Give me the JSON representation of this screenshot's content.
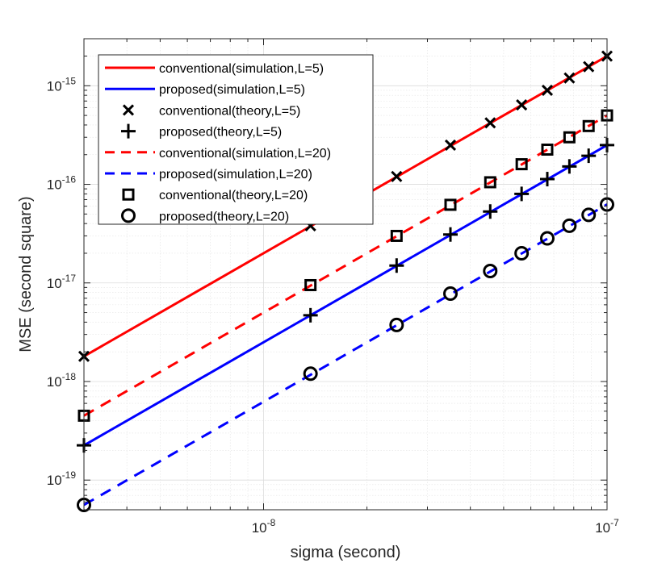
{
  "chart_data": {
    "type": "line",
    "xlabel": "sigma (second)",
    "ylabel": "MSE (second square)",
    "x_scale": "log",
    "y_scale": "log",
    "xlim": [
      3e-09,
      1e-07
    ],
    "ylim": [
      5e-20,
      3e-15
    ],
    "grid": true,
    "legend_position": "top-left",
    "x_ticks": [
      {
        "value": 1e-08,
        "base": "10",
        "exp": "-8"
      },
      {
        "value": 1e-07,
        "base": "10",
        "exp": "-7"
      }
    ],
    "y_ticks": [
      {
        "value": 1e-19,
        "base": "10",
        "exp": "-19"
      },
      {
        "value": 1e-18,
        "base": "10",
        "exp": "-18"
      },
      {
        "value": 1e-17,
        "base": "10",
        "exp": "-17"
      },
      {
        "value": 1e-16,
        "base": "10",
        "exp": "-16"
      },
      {
        "value": 1e-15,
        "base": "10",
        "exp": "-15"
      }
    ],
    "series": [
      {
        "name": "conventional(simulation,L=5)",
        "style": "solid",
        "color": "#ff0000",
        "marker": "none",
        "x": [
          3e-09,
          1e-07
        ],
        "y": [
          1.8e-18,
          2e-15
        ]
      },
      {
        "name": "proposed(simulation,L=5)",
        "style": "solid",
        "color": "#0000ff",
        "marker": "none",
        "x": [
          3e-09,
          1e-07
        ],
        "y": [
          2.25e-19,
          2.5e-16
        ]
      },
      {
        "name": "conventional(theory,L=5)",
        "style": "none",
        "color": "#000000",
        "marker": "x",
        "x": [
          3e-09,
          1.37e-08,
          2.44e-08,
          3.5e-08,
          4.57e-08,
          5.64e-08,
          6.7e-08,
          7.77e-08,
          8.84e-08,
          1e-07
        ],
        "y": [
          1.8e-18,
          3.8e-17,
          1.2e-16,
          2.5e-16,
          4.2e-16,
          6.4e-16,
          9e-16,
          1.2e-15,
          1.56e-15,
          2e-15
        ]
      },
      {
        "name": "proposed(theory,L=5)",
        "style": "none",
        "color": "#000000",
        "marker": "+",
        "x": [
          3e-09,
          1.37e-08,
          2.44e-08,
          3.5e-08,
          4.57e-08,
          5.64e-08,
          6.7e-08,
          7.77e-08,
          8.84e-08,
          1e-07
        ],
        "y": [
          2.25e-19,
          4.7e-18,
          1.5e-17,
          3.1e-17,
          5.3e-17,
          8e-17,
          1.13e-16,
          1.52e-16,
          1.95e-16,
          2.5e-16
        ]
      },
      {
        "name": "conventional(simulation,L=20)",
        "style": "dashed",
        "color": "#ff0000",
        "marker": "none",
        "x": [
          3e-09,
          1e-07
        ],
        "y": [
          4.5e-19,
          5e-16
        ]
      },
      {
        "name": "proposed(simulation,L=20)",
        "style": "dashed",
        "color": "#0000ff",
        "marker": "none",
        "x": [
          3e-09,
          1e-07
        ],
        "y": [
          5.6e-20,
          6.25e-17
        ]
      },
      {
        "name": "conventional(theory,L=20)",
        "style": "none",
        "color": "#000000",
        "marker": "square",
        "x": [
          3e-09,
          1.37e-08,
          2.44e-08,
          3.5e-08,
          4.57e-08,
          5.64e-08,
          6.7e-08,
          7.77e-08,
          8.84e-08,
          1e-07
        ],
        "y": [
          4.5e-19,
          9.5e-18,
          3e-17,
          6.2e-17,
          1.05e-16,
          1.6e-16,
          2.25e-16,
          3e-16,
          3.9e-16,
          5e-16
        ]
      },
      {
        "name": "proposed(theory,L=20)",
        "style": "none",
        "color": "#000000",
        "marker": "circle",
        "x": [
          3e-09,
          1.37e-08,
          2.44e-08,
          3.5e-08,
          4.57e-08,
          5.64e-08,
          6.7e-08,
          7.77e-08,
          8.84e-08,
          1e-07
        ],
        "y": [
          5.6e-20,
          1.2e-18,
          3.75e-18,
          7.8e-18,
          1.32e-17,
          2e-17,
          2.83e-17,
          3.8e-17,
          4.9e-17,
          6.25e-17
        ]
      }
    ]
  }
}
